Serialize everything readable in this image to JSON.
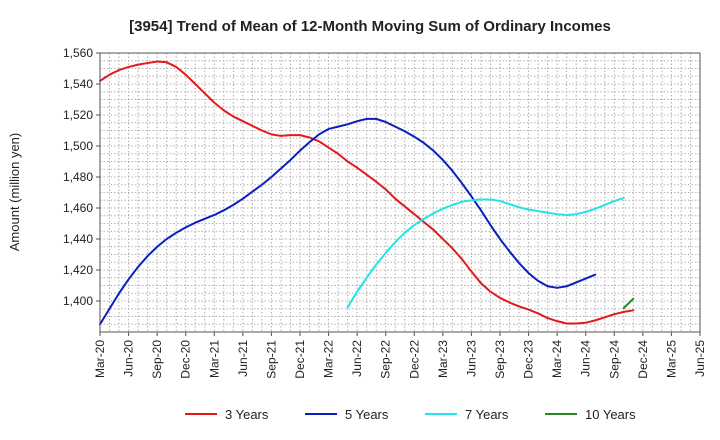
{
  "chart_data": {
    "type": "line",
    "title": "[3954]  Trend of Mean of 12-Month Moving Sum of Ordinary Incomes",
    "xlabel": "",
    "ylabel": "Amount (million yen)",
    "ylim": [
      1380,
      1560
    ],
    "yticks": [
      1400,
      1420,
      1440,
      1460,
      1480,
      1500,
      1520,
      1540,
      1560
    ],
    "ytick_labels": [
      "1,400",
      "1,420",
      "1,440",
      "1,460",
      "1,480",
      "1,500",
      "1,520",
      "1,540",
      "1,560"
    ],
    "x_range_months": [
      0,
      63
    ],
    "x_ticks": [
      0,
      3,
      6,
      9,
      12,
      15,
      18,
      21,
      24,
      27,
      30,
      33,
      36,
      39,
      42,
      45,
      48,
      51,
      54,
      57,
      60,
      63
    ],
    "x_tick_labels": [
      "Mar-20",
      "Jun-20",
      "Sep-20",
      "Dec-20",
      "Mar-21",
      "Jun-21",
      "Sep-21",
      "Dec-21",
      "Mar-22",
      "Jun-22",
      "Sep-22",
      "Dec-22",
      "Mar-23",
      "Jun-23",
      "Sep-23",
      "Dec-23",
      "Mar-24",
      "Jun-24",
      "Sep-24",
      "Dec-24",
      "Mar-25",
      "Jun-25"
    ],
    "grid": true,
    "legend_position": "bottom",
    "series": [
      {
        "name": "3 Years",
        "color": "#e31a1c",
        "points": [
          [
            0,
            1542
          ],
          [
            1,
            1546
          ],
          [
            2,
            1549
          ],
          [
            3,
            1551
          ],
          [
            4,
            1552.5
          ],
          [
            5,
            1553.5
          ],
          [
            6,
            1554.5
          ],
          [
            7,
            1554
          ],
          [
            8,
            1551
          ],
          [
            9,
            1546
          ],
          [
            10,
            1540
          ],
          [
            11,
            1534
          ],
          [
            12,
            1528
          ],
          [
            13,
            1523
          ],
          [
            14,
            1519
          ],
          [
            15,
            1516
          ],
          [
            16,
            1513
          ],
          [
            17,
            1510
          ],
          [
            18,
            1507.5
          ],
          [
            19,
            1506.5
          ],
          [
            20,
            1507
          ],
          [
            21,
            1507
          ],
          [
            22,
            1505.5
          ],
          [
            23,
            1503
          ],
          [
            24,
            1499
          ],
          [
            25,
            1495
          ],
          [
            26,
            1490
          ],
          [
            27,
            1486
          ],
          [
            28,
            1481.5
          ],
          [
            29,
            1477
          ],
          [
            30,
            1472
          ],
          [
            31,
            1466
          ],
          [
            32,
            1461
          ],
          [
            33,
            1456
          ],
          [
            34,
            1451
          ],
          [
            35,
            1446
          ],
          [
            36,
            1440
          ],
          [
            37,
            1434
          ],
          [
            38,
            1427
          ],
          [
            39,
            1419
          ],
          [
            40,
            1411.5
          ],
          [
            41,
            1406
          ],
          [
            42,
            1402
          ],
          [
            43,
            1399
          ],
          [
            44,
            1396.5
          ],
          [
            45,
            1394.5
          ],
          [
            46,
            1392
          ],
          [
            47,
            1389
          ],
          [
            48,
            1387
          ],
          [
            49,
            1385.5
          ],
          [
            50,
            1385.5
          ],
          [
            51,
            1386
          ],
          [
            52,
            1387.5
          ],
          [
            53,
            1389.5
          ],
          [
            54,
            1391.5
          ],
          [
            55,
            1393
          ],
          [
            56,
            1394
          ]
        ]
      },
      {
        "name": "5 Years",
        "color": "#0a1fbf",
        "points": [
          [
            0,
            1385
          ],
          [
            1,
            1395
          ],
          [
            2,
            1405
          ],
          [
            3,
            1414
          ],
          [
            4,
            1422
          ],
          [
            5,
            1429
          ],
          [
            6,
            1435
          ],
          [
            7,
            1440
          ],
          [
            8,
            1444
          ],
          [
            9,
            1447.5
          ],
          [
            10,
            1450.5
          ],
          [
            11,
            1453
          ],
          [
            12,
            1455.5
          ],
          [
            13,
            1458.5
          ],
          [
            14,
            1462
          ],
          [
            15,
            1466
          ],
          [
            16,
            1470.5
          ],
          [
            17,
            1475
          ],
          [
            18,
            1480
          ],
          [
            19,
            1485.5
          ],
          [
            20,
            1491
          ],
          [
            21,
            1497
          ],
          [
            22,
            1502.5
          ],
          [
            23,
            1507.5
          ],
          [
            24,
            1511
          ],
          [
            25,
            1512.5
          ],
          [
            26,
            1514
          ],
          [
            27,
            1516
          ],
          [
            28,
            1517.5
          ],
          [
            29,
            1517.5
          ],
          [
            30,
            1515.5
          ],
          [
            31,
            1512.5
          ],
          [
            32,
            1509.5
          ],
          [
            33,
            1506
          ],
          [
            34,
            1502
          ],
          [
            35,
            1497
          ],
          [
            36,
            1491
          ],
          [
            37,
            1484
          ],
          [
            38,
            1476
          ],
          [
            39,
            1467.5
          ],
          [
            40,
            1458.5
          ],
          [
            41,
            1449
          ],
          [
            42,
            1440
          ],
          [
            43,
            1432
          ],
          [
            44,
            1424.5
          ],
          [
            45,
            1418
          ],
          [
            46,
            1413
          ],
          [
            47,
            1409.5
          ],
          [
            48,
            1408.5
          ],
          [
            49,
            1409.5
          ],
          [
            50,
            1412
          ],
          [
            51,
            1414.5
          ],
          [
            52,
            1417
          ]
        ]
      },
      {
        "name": "7 Years",
        "color": "#22e4e4",
        "points": [
          [
            0,
            1396
          ],
          [
            1,
            1406
          ],
          [
            2,
            1415
          ],
          [
            3,
            1423.5
          ],
          [
            4,
            1431
          ],
          [
            5,
            1438
          ],
          [
            6,
            1444
          ],
          [
            7,
            1449
          ],
          [
            8,
            1453
          ],
          [
            9,
            1456.5
          ],
          [
            10,
            1459.5
          ],
          [
            11,
            1462
          ],
          [
            12,
            1464
          ],
          [
            13,
            1465
          ],
          [
            14,
            1465.5
          ],
          [
            15,
            1465.5
          ],
          [
            16,
            1464.5
          ],
          [
            17,
            1462.5
          ],
          [
            18,
            1460.5
          ],
          [
            19,
            1459
          ],
          [
            20,
            1458
          ],
          [
            21,
            1457
          ],
          [
            22,
            1456
          ],
          [
            23,
            1455.5
          ],
          [
            24,
            1456
          ],
          [
            25,
            1457.5
          ],
          [
            26,
            1459.5
          ],
          [
            27,
            1462
          ],
          [
            28,
            1464.5
          ],
          [
            29,
            1466.5
          ]
        ]
      },
      {
        "name": "10 Years",
        "color": "#228b22",
        "points": [
          [
            0,
            1395.5
          ],
          [
            1,
            1401.5
          ]
        ]
      }
    ],
    "series_start_month": {
      "3 Years": 0,
      "5 Years": 0,
      "7 Years": 26,
      "10 Years": 55
    }
  }
}
